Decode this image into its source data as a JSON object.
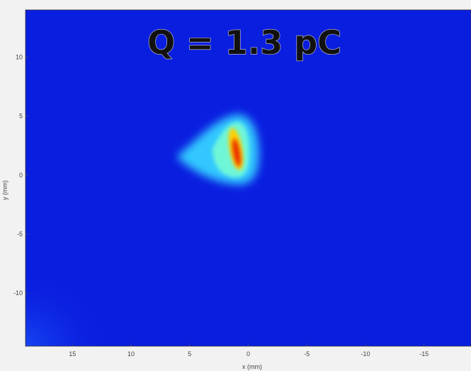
{
  "chart_data": {
    "type": "heatmap",
    "title": "Q = 1.3 pC",
    "xlabel": "x (mm)",
    "ylabel": "y (mm)",
    "xlim": [
      19,
      -19
    ],
    "ylim": [
      -14.5,
      14
    ],
    "x_ticks": [
      15,
      10,
      5,
      0,
      -5,
      -10,
      -15
    ],
    "x_tick_labels": [
      "15",
      "10",
      "5",
      "0",
      "-5",
      "-10",
      "-15"
    ],
    "y_ticks": [
      10,
      5,
      0,
      -5,
      -10
    ],
    "y_tick_labels": [
      "10",
      "5",
      "0",
      "-5",
      "-10"
    ],
    "colormap": [
      "#0000a8",
      "#0030ff",
      "#00c8ff",
      "#a0ffc0",
      "#ffff00",
      "#ff8000",
      "#e00000"
    ],
    "background_color": "#0a1ee0",
    "beam_spot": {
      "core_center": [
        1.0,
        2.0
      ],
      "core_extent_x": [
        0,
        2
      ],
      "core_extent_y": [
        0.5,
        4
      ],
      "halo_extent_x": [
        -1.0,
        5.8
      ],
      "halo_extent_y": [
        -0.5,
        5.2
      ],
      "peak_intensity": 1.0
    },
    "grid": false,
    "colorbar": false
  }
}
